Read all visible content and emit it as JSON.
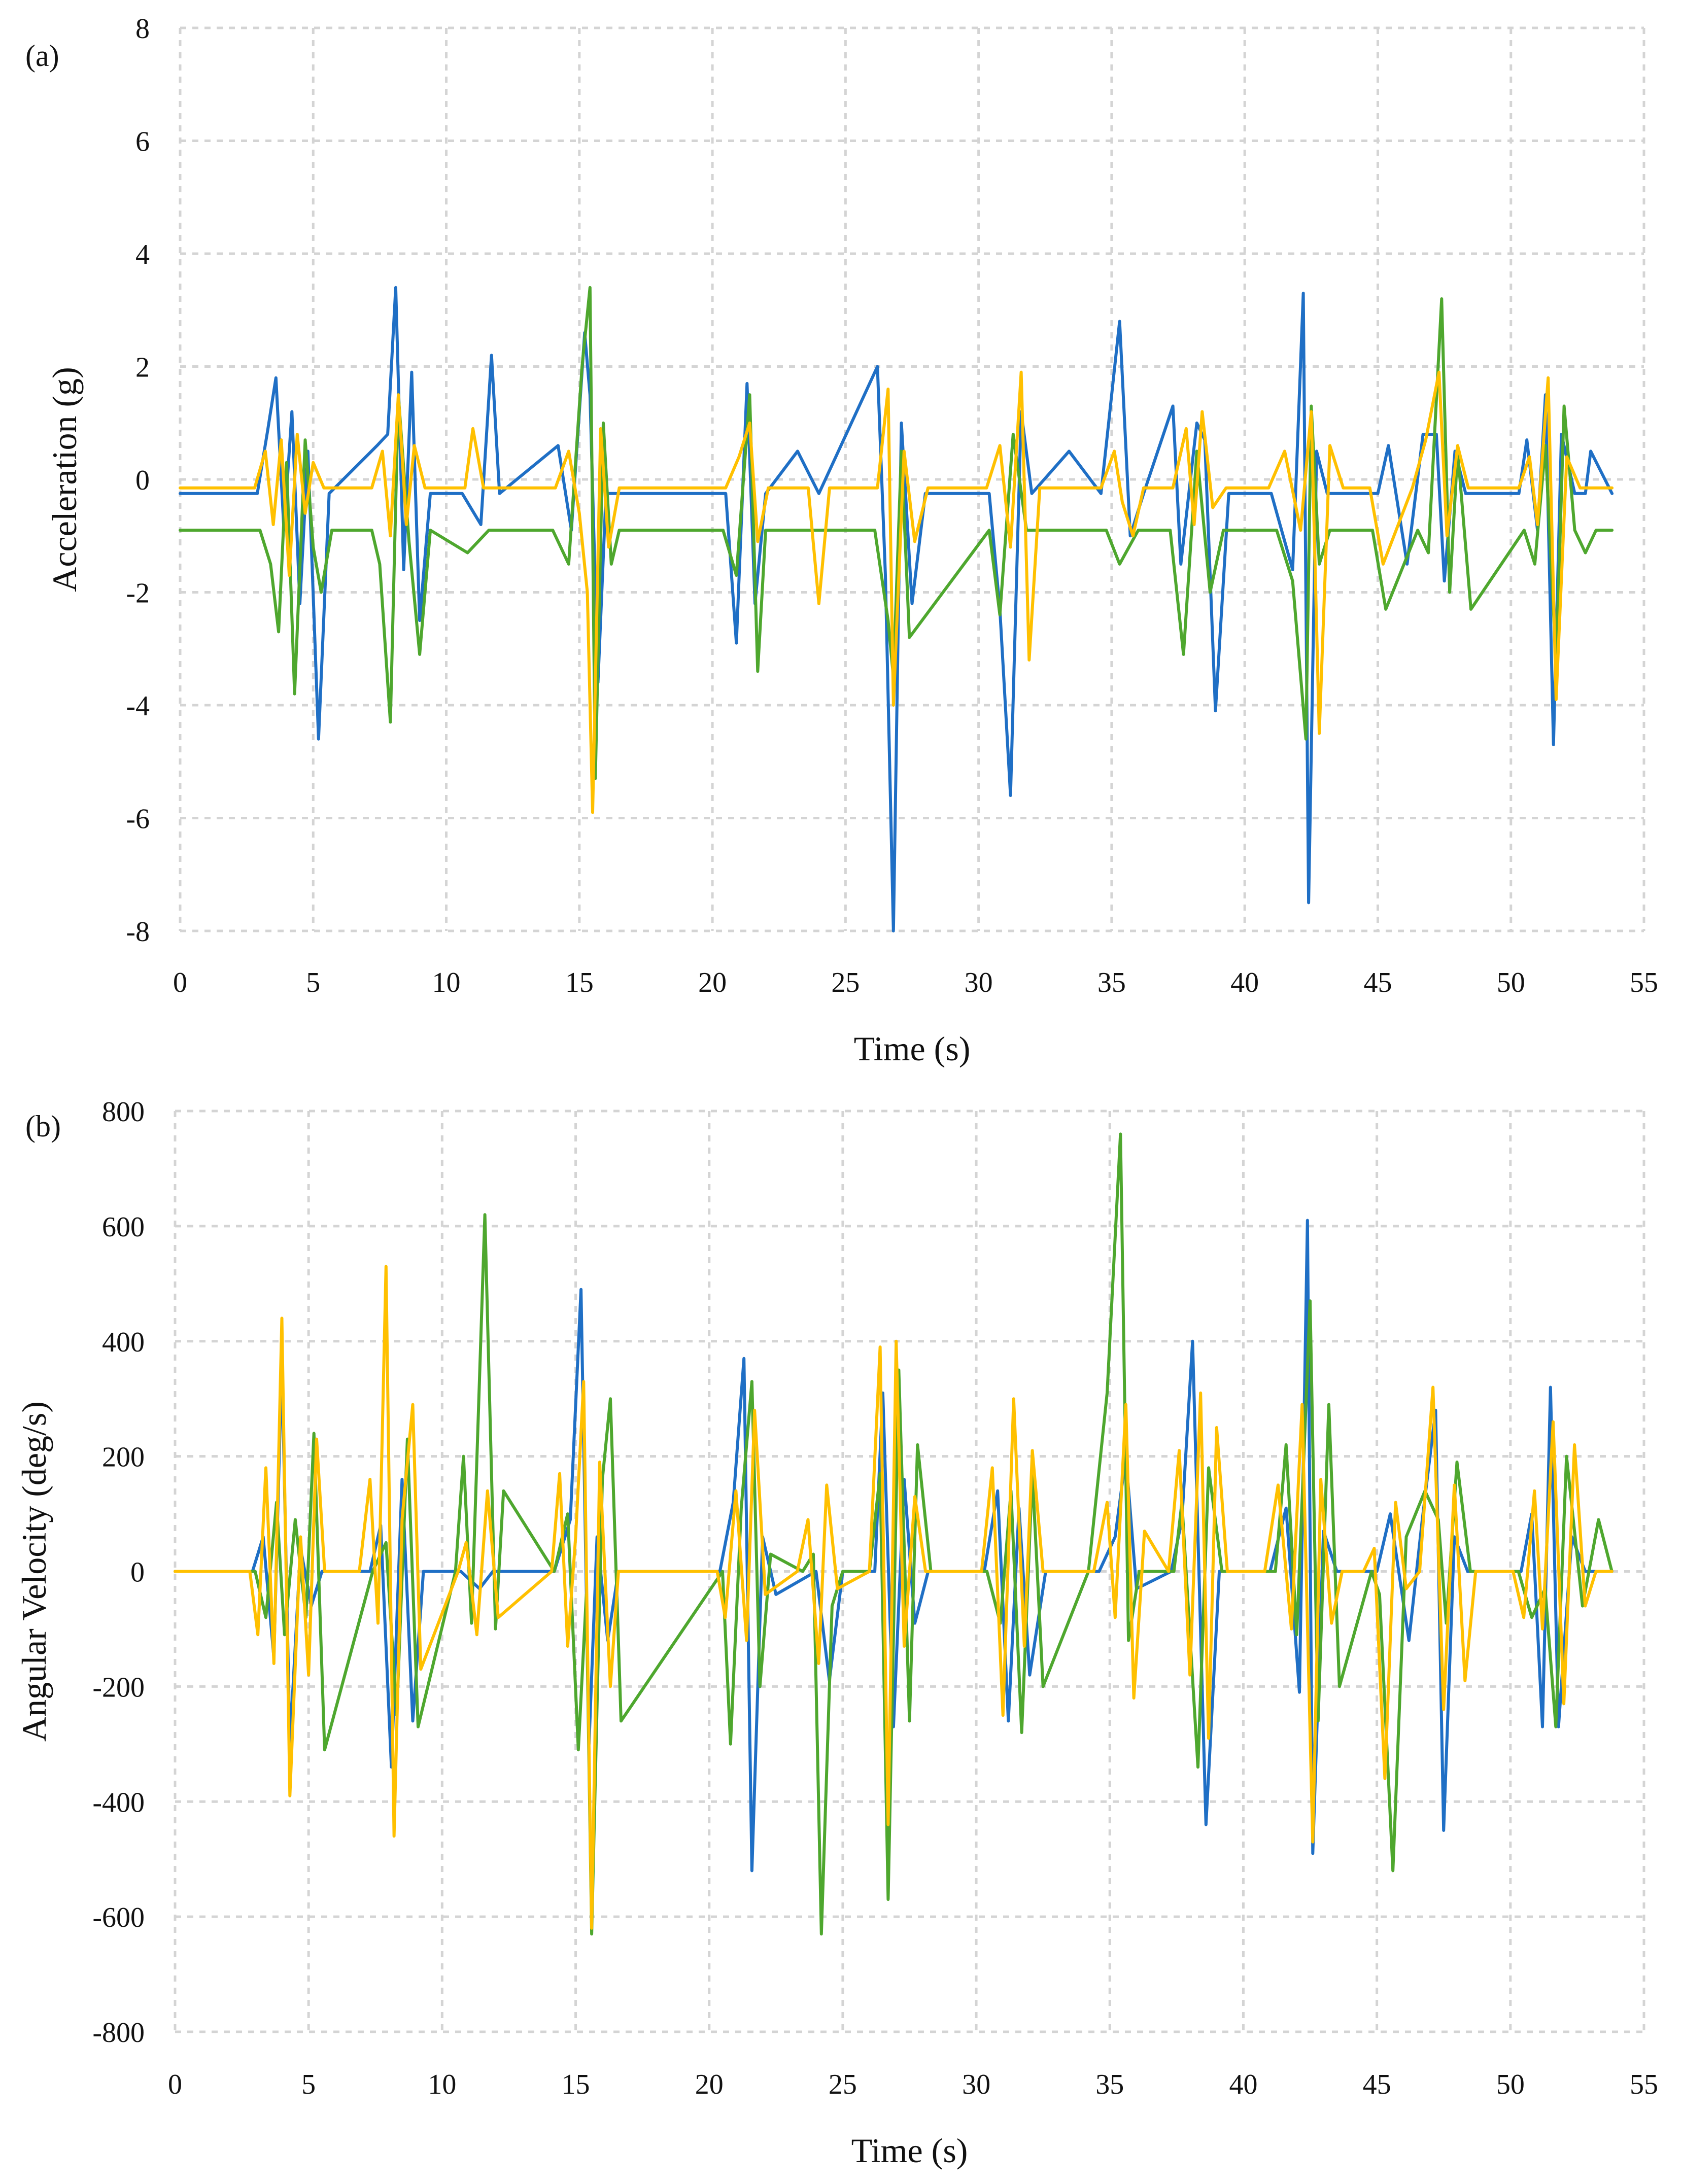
{
  "chart_data": [
    {
      "type": "line",
      "panel_label": "(a)",
      "xlabel": "Time (s)",
      "ylabel": "Acceleration (g)",
      "xlim": [
        0,
        55
      ],
      "ylim": [
        -8,
        8
      ],
      "xticks": [
        0,
        5,
        10,
        15,
        20,
        25,
        30,
        35,
        40,
        45,
        50,
        55
      ],
      "yticks": [
        8,
        6,
        4,
        2,
        0,
        -2,
        -4,
        -6,
        -8
      ],
      "grid": true,
      "series": [
        {
          "color": "#1f6fc5",
          "x": [
            0,
            2.9,
            3.3,
            3.6,
            3.9,
            4.2,
            4.5,
            4.8,
            5.2,
            5.6,
            7.4,
            7.8,
            8.1,
            8.4,
            8.7,
            9.0,
            9.4,
            10.6,
            11.3,
            11.7,
            12.0,
            14.2,
            14.7,
            15.2,
            15.4,
            15.7,
            16.0,
            16.4,
            20.5,
            20.9,
            21.3,
            21.6,
            22.0,
            23.2,
            24.0,
            26.2,
            26.5,
            26.8,
            27.1,
            27.5,
            28.0,
            30.4,
            30.8,
            31.2,
            31.6,
            32.0,
            33.4,
            34.6,
            35.3,
            35.7,
            36.2,
            37.3,
            37.6,
            38.2,
            38.5,
            38.9,
            39.4,
            41.0,
            41.8,
            42.2,
            42.4,
            42.7,
            43.1,
            43.6,
            45.0,
            45.4,
            46.1,
            46.7,
            47.2,
            47.5,
            47.9,
            48.3,
            50.3,
            50.6,
            51.0,
            51.3,
            51.6,
            51.9,
            52.4,
            52.8,
            53.0,
            53.8
          ],
          "y": [
            -0.25,
            -0.25,
            0.9,
            1.8,
            -0.9,
            1.2,
            -2.2,
            0.5,
            -4.6,
            -0.25,
            0.6,
            0.8,
            3.4,
            -1.6,
            1.9,
            -2.5,
            -0.25,
            -0.25,
            -0.8,
            2.2,
            -0.25,
            0.6,
            -0.9,
            2.6,
            1.5,
            -3.6,
            -0.25,
            -0.25,
            -0.25,
            -2.9,
            1.7,
            -2.2,
            -0.25,
            0.5,
            -0.25,
            2.0,
            -1.7,
            -8.0,
            1.0,
            -2.2,
            -0.25,
            -0.25,
            -2.3,
            -5.6,
            1.2,
            -0.25,
            0.5,
            -0.25,
            2.8,
            -1.0,
            -0.25,
            1.3,
            -1.5,
            1.0,
            0.7,
            -4.1,
            -0.25,
            -0.25,
            -1.6,
            3.3,
            -7.5,
            0.5,
            -0.25,
            -0.25,
            -0.25,
            0.6,
            -1.5,
            0.8,
            0.8,
            -1.8,
            0.5,
            -0.25,
            -0.25,
            0.7,
            -0.9,
            1.5,
            -4.7,
            0.8,
            -0.25,
            -0.25,
            0.5,
            -0.25
          ]
        },
        {
          "color": "#4ea72e",
          "x": [
            0,
            3.0,
            3.4,
            3.7,
            4.0,
            4.3,
            4.7,
            5.0,
            5.3,
            5.7,
            7.2,
            7.5,
            7.9,
            8.2,
            8.6,
            9.0,
            9.4,
            10.8,
            11.6,
            14.0,
            14.6,
            15.1,
            15.4,
            15.6,
            15.9,
            16.2,
            16.5,
            20.4,
            20.9,
            21.4,
            21.7,
            22.0,
            26.1,
            26.6,
            26.8,
            27.1,
            27.4,
            30.4,
            30.8,
            31.3,
            31.8,
            34.8,
            35.3,
            36.0,
            37.2,
            37.7,
            38.2,
            38.7,
            39.2,
            41.2,
            41.8,
            42.3,
            42.5,
            42.8,
            43.2,
            44.8,
            45.3,
            46.5,
            46.9,
            47.4,
            47.7,
            48.0,
            48.5,
            50.5,
            50.9,
            51.3,
            51.7,
            52.0,
            52.4,
            52.8,
            53.2,
            53.8
          ],
          "y": [
            -0.9,
            -0.9,
            -1.5,
            -2.7,
            0.3,
            -3.8,
            0.7,
            -1.2,
            -2.0,
            -0.9,
            -0.9,
            -1.5,
            -4.3,
            1.5,
            -1.1,
            -3.1,
            -0.9,
            -1.3,
            -0.9,
            -0.9,
            -1.5,
            2.0,
            3.4,
            -5.3,
            1.0,
            -1.5,
            -0.9,
            -0.9,
            -1.7,
            1.5,
            -3.4,
            -0.9,
            -0.9,
            -2.5,
            -3.5,
            0.5,
            -2.8,
            -0.9,
            -2.4,
            0.8,
            -0.9,
            -0.9,
            -1.5,
            -0.9,
            -0.9,
            -3.1,
            0.5,
            -2.0,
            -0.9,
            -0.9,
            -1.8,
            -4.6,
            1.3,
            -1.5,
            -0.9,
            -0.9,
            -2.3,
            -0.9,
            -1.3,
            3.2,
            -2.0,
            0.5,
            -2.3,
            -0.9,
            -1.5,
            0.6,
            -3.3,
            1.3,
            -0.9,
            -1.3,
            -0.9,
            -0.9
          ]
        },
        {
          "color": "#ffc000",
          "x": [
            0,
            2.8,
            3.2,
            3.5,
            3.8,
            4.1,
            4.4,
            4.7,
            5.0,
            5.4,
            7.2,
            7.6,
            7.9,
            8.2,
            8.5,
            8.8,
            9.2,
            10.7,
            11.0,
            11.4,
            14.1,
            14.6,
            15.0,
            15.3,
            15.5,
            15.8,
            16.1,
            16.5,
            20.5,
            21.0,
            21.4,
            21.7,
            22.1,
            23.6,
            24.0,
            24.4,
            26.2,
            26.6,
            26.8,
            27.2,
            27.6,
            28.1,
            30.3,
            30.8,
            31.2,
            31.6,
            31.9,
            32.3,
            34.6,
            35.1,
            35.4,
            35.8,
            36.2,
            37.3,
            37.8,
            38.1,
            38.4,
            38.8,
            39.3,
            40.9,
            41.5,
            42.1,
            42.5,
            42.8,
            43.2,
            43.7,
            44.7,
            45.2,
            46.3,
            46.8,
            47.3,
            47.6,
            48.0,
            48.4,
            50.3,
            50.7,
            51.0,
            51.4,
            51.7,
            52.1,
            52.6,
            53.2,
            53.8
          ],
          "y": [
            -0.15,
            -0.15,
            0.5,
            -0.8,
            0.7,
            -1.7,
            0.8,
            -0.6,
            0.3,
            -0.15,
            -0.15,
            0.5,
            -1.0,
            1.5,
            -0.8,
            0.6,
            -0.15,
            -0.15,
            0.9,
            -0.15,
            -0.15,
            0.5,
            -0.6,
            -2.0,
            -5.9,
            0.9,
            -1.2,
            -0.15,
            -0.15,
            0.4,
            1.0,
            -1.1,
            -0.15,
            -0.15,
            -2.2,
            -0.15,
            -0.15,
            1.6,
            -4.0,
            0.5,
            -1.1,
            -0.15,
            -0.15,
            0.6,
            -1.2,
            1.9,
            -3.2,
            -0.15,
            -0.15,
            0.5,
            -0.4,
            -1.0,
            -0.15,
            -0.15,
            0.9,
            -0.8,
            1.2,
            -0.5,
            -0.15,
            -0.15,
            0.5,
            -0.9,
            1.2,
            -4.5,
            0.6,
            -0.15,
            -0.15,
            -1.5,
            -0.15,
            0.7,
            1.9,
            -1.0,
            0.6,
            -0.15,
            -0.15,
            0.4,
            -0.8,
            1.8,
            -3.9,
            0.4,
            -0.15,
            -0.15,
            -0.15
          ]
        }
      ]
    },
    {
      "type": "line",
      "panel_label": "(b)",
      "xlabel": "Time (s)",
      "ylabel": "Angular Velocity (deg/s)",
      "xlim": [
        0,
        55
      ],
      "ylim": [
        -800,
        800
      ],
      "xticks": [
        0,
        5,
        10,
        15,
        20,
        25,
        30,
        35,
        40,
        45,
        50,
        55
      ],
      "yticks": [
        800,
        600,
        400,
        200,
        0,
        -200,
        -400,
        -600,
        -800
      ],
      "grid": true,
      "series": [
        {
          "color": "#1f6fc5",
          "x": [
            0,
            2.9,
            3.3,
            3.7,
            4.0,
            4.3,
            4.7,
            5.1,
            5.5,
            7.3,
            7.7,
            8.1,
            8.5,
            8.9,
            9.3,
            10.7,
            11.4,
            11.9,
            14.2,
            14.8,
            15.2,
            15.5,
            15.8,
            16.2,
            16.6,
            20.4,
            20.9,
            21.3,
            21.6,
            22.0,
            22.5,
            24.0,
            24.5,
            25.0,
            26.2,
            26.5,
            26.9,
            27.3,
            27.7,
            28.2,
            30.3,
            30.8,
            31.2,
            31.6,
            32.0,
            32.6,
            34.6,
            35.2,
            35.6,
            36.0,
            37.3,
            37.7,
            38.1,
            38.6,
            39.1,
            41.0,
            41.6,
            42.1,
            42.4,
            42.6,
            43.0,
            43.5,
            45.0,
            45.5,
            46.2,
            46.7,
            47.2,
            47.5,
            47.9,
            48.4,
            50.4,
            50.8,
            51.2,
            51.5,
            51.8,
            52.3,
            52.8,
            53.8
          ],
          "y": [
            0,
            0,
            60,
            -150,
            370,
            -300,
            40,
            -60,
            0,
            0,
            80,
            -340,
            160,
            -260,
            0,
            0,
            -30,
            0,
            0,
            90,
            490,
            -300,
            60,
            -120,
            0,
            0,
            120,
            370,
            -520,
            60,
            -40,
            0,
            -190,
            0,
            0,
            310,
            -270,
            160,
            -90,
            0,
            0,
            140,
            -260,
            110,
            -180,
            0,
            0,
            60,
            200,
            -30,
            0,
            90,
            400,
            -440,
            0,
            0,
            110,
            -210,
            610,
            -490,
            70,
            0,
            0,
            100,
            -120,
            90,
            280,
            -450,
            60,
            0,
            0,
            100,
            -270,
            320,
            -270,
            60,
            0,
            0
          ]
        },
        {
          "color": "#4ea72e",
          "x": [
            0,
            3.0,
            3.4,
            3.8,
            4.1,
            4.5,
            4.9,
            5.2,
            5.6,
            7.4,
            7.9,
            8.3,
            8.7,
            9.1,
            10.5,
            10.8,
            11.1,
            11.6,
            12.0,
            12.3,
            14.2,
            14.7,
            15.1,
            15.4,
            15.6,
            16.0,
            16.3,
            16.7,
            20.5,
            20.8,
            21.2,
            21.6,
            21.9,
            22.3,
            23.5,
            23.9,
            24.2,
            24.6,
            25.0,
            26.0,
            26.4,
            26.7,
            27.1,
            27.5,
            27.8,
            28.3,
            30.4,
            30.9,
            31.3,
            31.7,
            32.1,
            32.5,
            34.2,
            34.9,
            35.4,
            35.7,
            36.1,
            37.4,
            37.7,
            38.3,
            38.7,
            39.2,
            41.2,
            41.6,
            42.0,
            42.5,
            42.8,
            43.2,
            43.6,
            44.8,
            45.1,
            45.6,
            46.1,
            46.8,
            47.3,
            47.6,
            48.0,
            48.5,
            50.3,
            50.8,
            51.3,
            51.7,
            52.1,
            52.7,
            53.3,
            53.8
          ],
          "y": [
            0,
            0,
            -80,
            120,
            -110,
            90,
            -80,
            240,
            -310,
            0,
            50,
            -250,
            230,
            -270,
            0,
            200,
            -90,
            620,
            -100,
            140,
            0,
            100,
            -310,
            -40,
            -630,
            160,
            300,
            -260,
            0,
            -300,
            110,
            330,
            -200,
            30,
            0,
            30,
            -630,
            -60,
            0,
            0,
            170,
            -570,
            350,
            -260,
            220,
            0,
            0,
            -90,
            140,
            -280,
            170,
            -200,
            0,
            310,
            760,
            -120,
            0,
            0,
            120,
            -340,
            180,
            0,
            0,
            220,
            -110,
            470,
            -260,
            290,
            -200,
            0,
            -40,
            -520,
            60,
            140,
            90,
            -90,
            190,
            0,
            0,
            -80,
            -30,
            -270,
            200,
            -60,
            90,
            0
          ]
        },
        {
          "color": "#ffc000",
          "x": [
            0,
            2.8,
            3.1,
            3.4,
            3.7,
            4.0,
            4.3,
            4.7,
            5.0,
            5.3,
            5.6,
            6.9,
            7.3,
            7.6,
            7.9,
            8.2,
            8.5,
            8.9,
            9.2,
            10.6,
            10.9,
            11.3,
            11.7,
            12.1,
            14.1,
            14.4,
            14.7,
            15.0,
            15.3,
            15.6,
            15.9,
            16.3,
            16.6,
            20.3,
            20.6,
            21.0,
            21.4,
            21.7,
            22.1,
            23.3,
            23.7,
            24.1,
            24.4,
            24.8,
            26.0,
            26.4,
            26.7,
            27.0,
            27.3,
            27.7,
            28.1,
            30.2,
            30.6,
            31.0,
            31.4,
            31.8,
            32.1,
            32.5,
            34.4,
            34.9,
            35.2,
            35.6,
            35.9,
            36.3,
            37.2,
            37.6,
            38.0,
            38.4,
            38.7,
            39.0,
            39.4,
            40.8,
            41.3,
            41.8,
            42.2,
            42.6,
            42.9,
            43.3,
            43.7,
            44.5,
            44.9,
            45.3,
            45.7,
            46.1,
            46.6,
            47.1,
            47.5,
            47.9,
            48.3,
            48.7,
            50.1,
            50.5,
            50.9,
            51.2,
            51.6,
            52.0,
            52.4,
            52.8,
            53.2,
            53.8
          ],
          "y": [
            0,
            0,
            -110,
            180,
            -160,
            440,
            -390,
            60,
            -180,
            230,
            0,
            0,
            160,
            -90,
            530,
            -460,
            90,
            290,
            -170,
            0,
            50,
            -110,
            140,
            -80,
            0,
            170,
            -130,
            60,
            330,
            -620,
            190,
            -200,
            0,
            0,
            -80,
            140,
            -120,
            280,
            -40,
            0,
            90,
            -160,
            150,
            -30,
            0,
            390,
            -440,
            400,
            -130,
            130,
            0,
            0,
            180,
            -250,
            300,
            -130,
            210,
            0,
            0,
            120,
            -80,
            290,
            -220,
            70,
            0,
            210,
            -180,
            310,
            -290,
            250,
            0,
            0,
            150,
            -100,
            290,
            -470,
            160,
            -90,
            0,
            0,
            40,
            -360,
            120,
            -30,
            0,
            320,
            -240,
            150,
            -190,
            0,
            0,
            -80,
            140,
            -100,
            260,
            -230,
            220,
            -60,
            0,
            0
          ]
        }
      ]
    }
  ]
}
